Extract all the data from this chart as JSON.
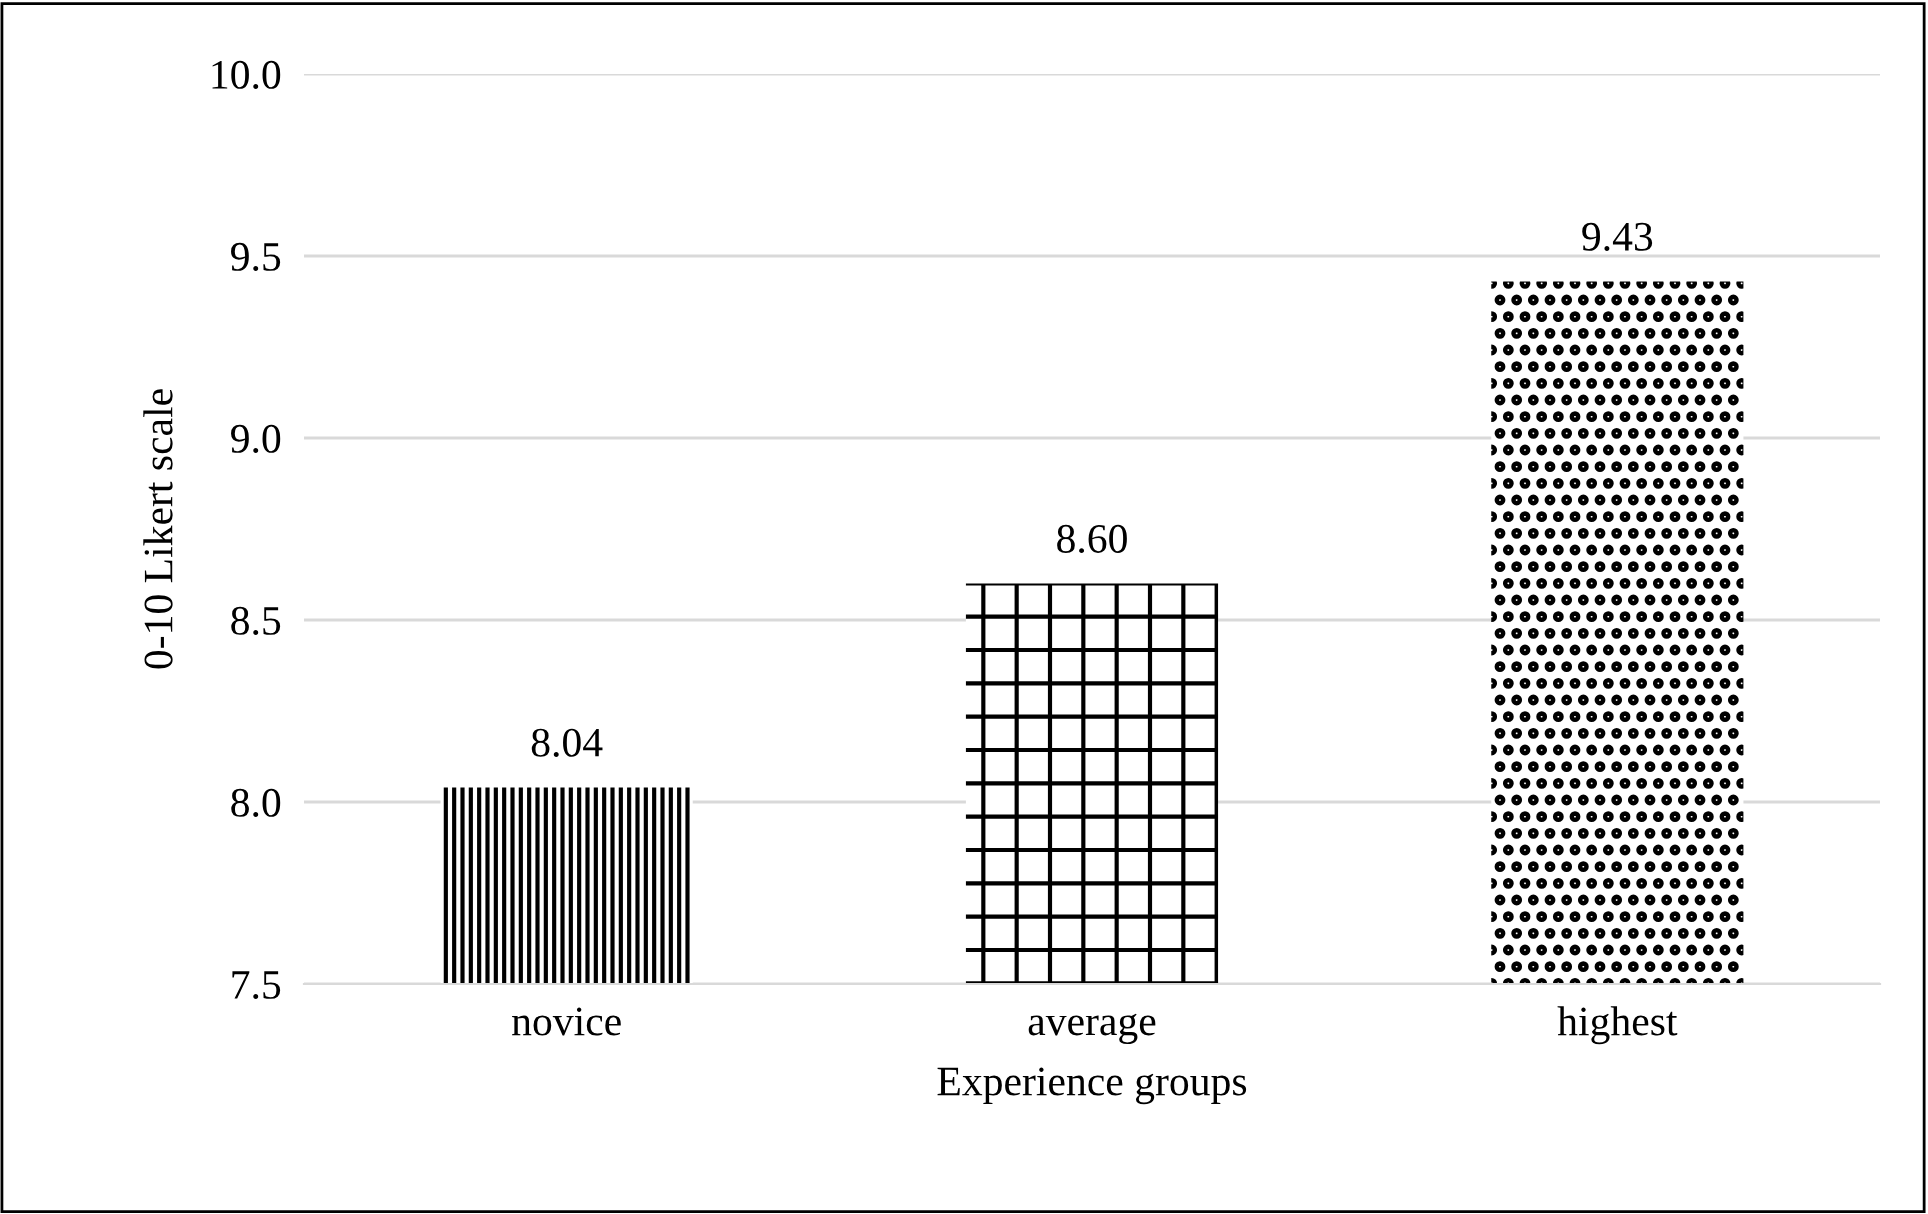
{
  "chart_data": {
    "type": "bar",
    "xlabel": "Experience groups",
    "ylabel": "0-10 Likert scale",
    "categories": [
      "novice",
      "average",
      "highest"
    ],
    "values": [
      8.04,
      8.6,
      9.43
    ],
    "value_labels": [
      "8.04",
      "8.60",
      "9.43"
    ],
    "color": "#000000",
    "ylim": [
      7.5,
      10.0
    ],
    "yticks": [
      {
        "value": 7.5,
        "label": "7.5"
      },
      {
        "value": 8.0,
        "label": "8.0"
      },
      {
        "value": 8.5,
        "label": "8.5"
      },
      {
        "value": 9.0,
        "label": "9.0"
      },
      {
        "value": 9.5,
        "label": "9.5"
      },
      {
        "value": 10.0,
        "label": "10.0"
      }
    ],
    "grid": "y"
  }
}
